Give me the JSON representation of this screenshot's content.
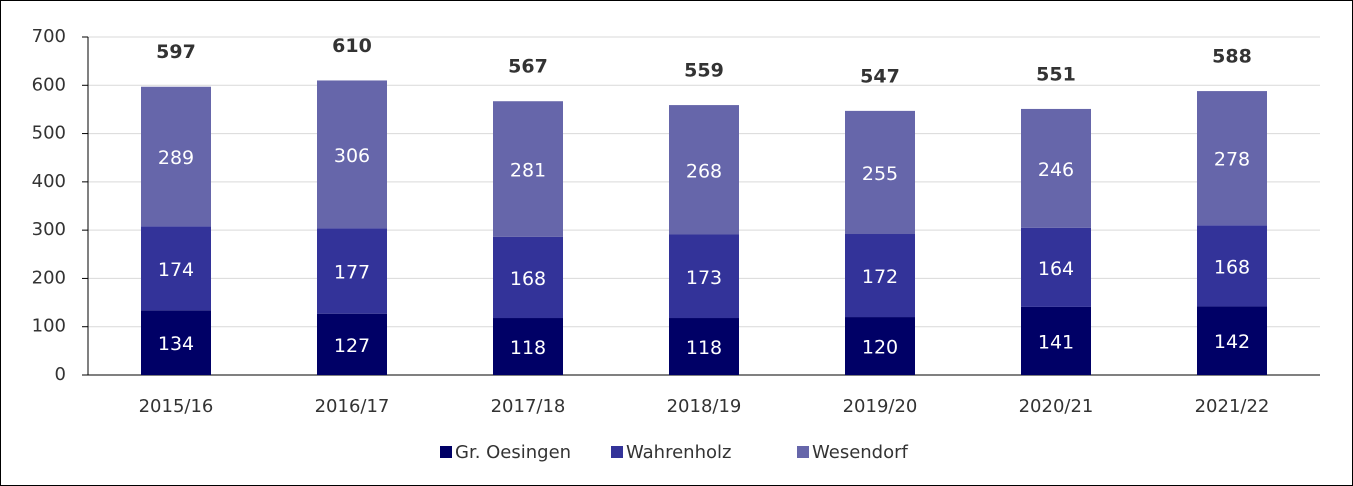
{
  "chart_data": {
    "type": "stacked_bar",
    "categories": [
      "2015/16",
      "2016/17",
      "2017/18",
      "2018/19",
      "2019/20",
      "2020/21",
      "2021/22"
    ],
    "series": [
      {
        "name": "Gr. Oesingen",
        "color": "#000066",
        "values": [
          134,
          127,
          118,
          118,
          120,
          141,
          142
        ]
      },
      {
        "name": "Wahrenholz",
        "color": "#333399",
        "values": [
          174,
          177,
          168,
          173,
          172,
          164,
          168
        ]
      },
      {
        "name": "Wesendorf",
        "color": "#6666aa",
        "values": [
          289,
          306,
          281,
          268,
          255,
          246,
          278
        ]
      }
    ],
    "totals": [
      597,
      610,
      567,
      559,
      547,
      551,
      588
    ],
    "ylim": [
      0,
      700
    ],
    "yticks": [
      0,
      100,
      200,
      300,
      400,
      500,
      600,
      700
    ],
    "grid": true,
    "legend": "bottom"
  }
}
